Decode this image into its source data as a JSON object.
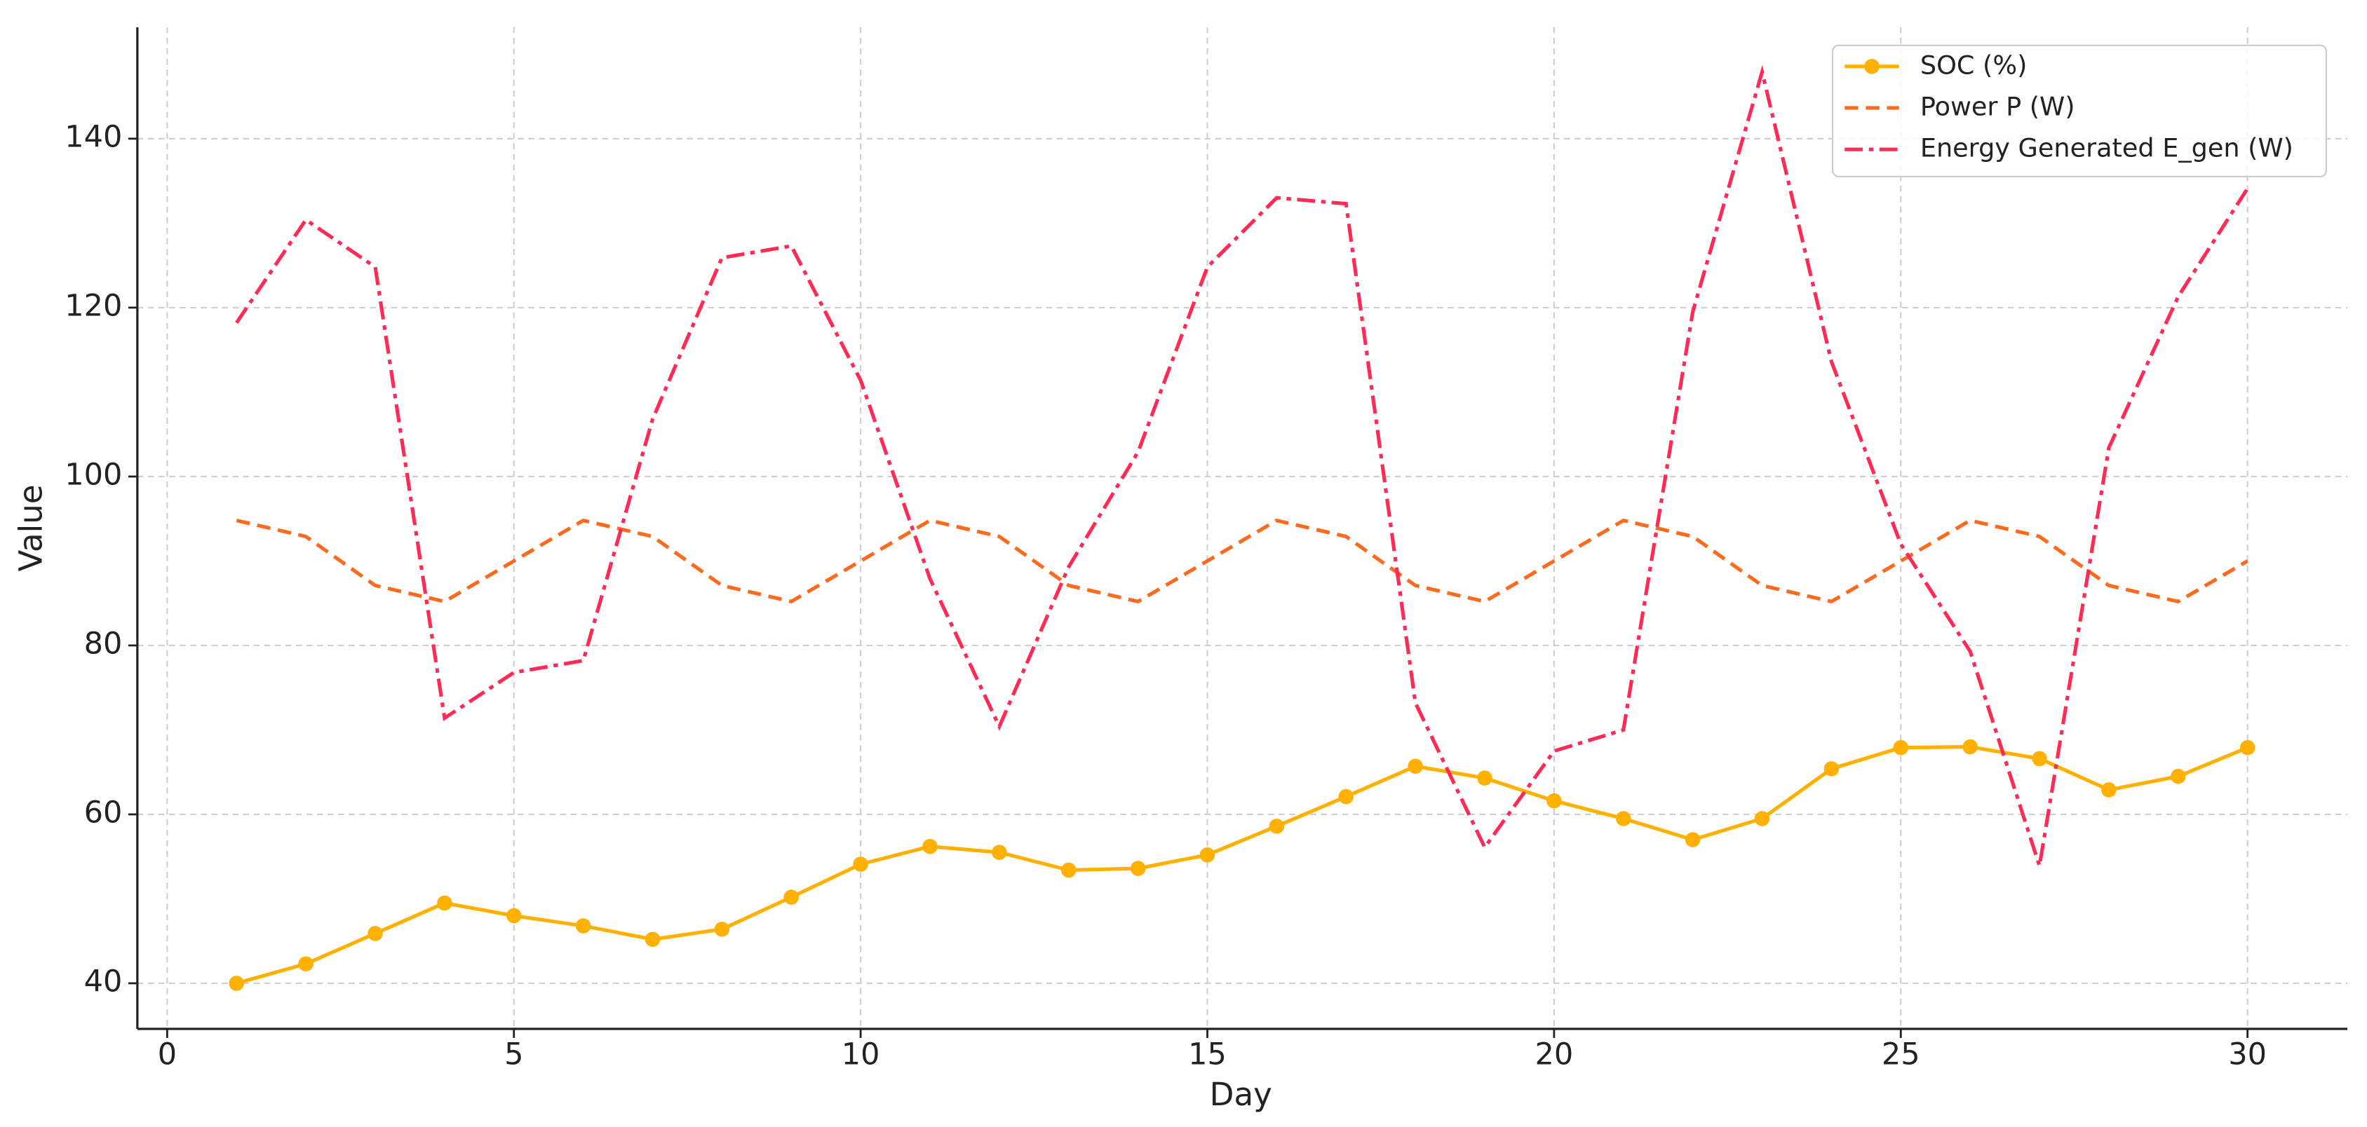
{
  "chart_data": {
    "type": "line",
    "xlabel": "Day",
    "ylabel": "Value",
    "x": [
      1,
      2,
      3,
      4,
      5,
      6,
      7,
      8,
      9,
      10,
      11,
      12,
      13,
      14,
      15,
      16,
      17,
      18,
      19,
      20,
      21,
      22,
      23,
      24,
      25,
      26,
      27,
      28,
      29,
      30
    ],
    "series": [
      {
        "name": "SOC (%)",
        "color": "#ffb000",
        "linestyle": "solid",
        "marker": "circle",
        "values": [
          40.0,
          42.3,
          45.9,
          49.5,
          48.0,
          46.8,
          45.2,
          46.4,
          50.2,
          54.1,
          56.2,
          55.5,
          53.4,
          53.6,
          55.2,
          58.6,
          62.1,
          65.7,
          64.3,
          61.6,
          59.5,
          57.0,
          59.5,
          65.4,
          67.9,
          68.0,
          66.6,
          62.9,
          64.5,
          67.9
        ]
      },
      {
        "name": "Power P (W)",
        "color": "#fe6a1e",
        "linestyle": "dashed",
        "marker": "none",
        "values": [
          94.8,
          92.9,
          87.1,
          85.2,
          90.0,
          94.8,
          92.9,
          87.1,
          85.2,
          90.0,
          94.8,
          92.9,
          87.1,
          85.2,
          90.0,
          94.8,
          92.9,
          87.1,
          85.2,
          90.0,
          94.8,
          92.9,
          87.1,
          85.2,
          90.0,
          94.8,
          92.9,
          87.1,
          85.2,
          90.0
        ]
      },
      {
        "name": "Energy Generated E_gen (W)",
        "color": "#ff2b57",
        "linestyle": "dashdot",
        "marker": "none",
        "values": [
          118.2,
          130.4,
          124.8,
          71.4,
          76.8,
          78.2,
          106.8,
          125.9,
          127.3,
          111.4,
          87.9,
          70.4,
          89.3,
          102.9,
          124.8,
          133.0,
          132.3,
          73.2,
          56.1,
          67.5,
          70.0,
          119.5,
          147.9,
          113.6,
          92.0,
          79.3,
          53.9,
          103.4,
          121.3,
          134.1
        ]
      }
    ],
    "xlim": [
      -0.43,
      31.44
    ],
    "ylim": [
      34.6,
      153.2
    ],
    "xticks": [
      0,
      5,
      10,
      15,
      20,
      25,
      30
    ],
    "yticks": [
      40,
      60,
      80,
      100,
      120,
      140
    ],
    "grid": true,
    "legend": "upper right"
  }
}
